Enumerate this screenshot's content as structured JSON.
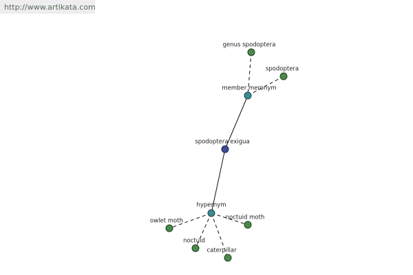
{
  "header": {
    "url": "http://www.artikata.com"
  },
  "nodes": [
    {
      "label": "genus spodoptera"
    },
    {
      "label": "spodoptera"
    },
    {
      "label": "member meronym"
    },
    {
      "label": "spodoptera exigua"
    },
    {
      "label": "hypernym"
    },
    {
      "label": "owlet moth"
    },
    {
      "label": "noctuid moth"
    },
    {
      "label": "noctuid"
    },
    {
      "label": "caterpillar"
    }
  ]
}
